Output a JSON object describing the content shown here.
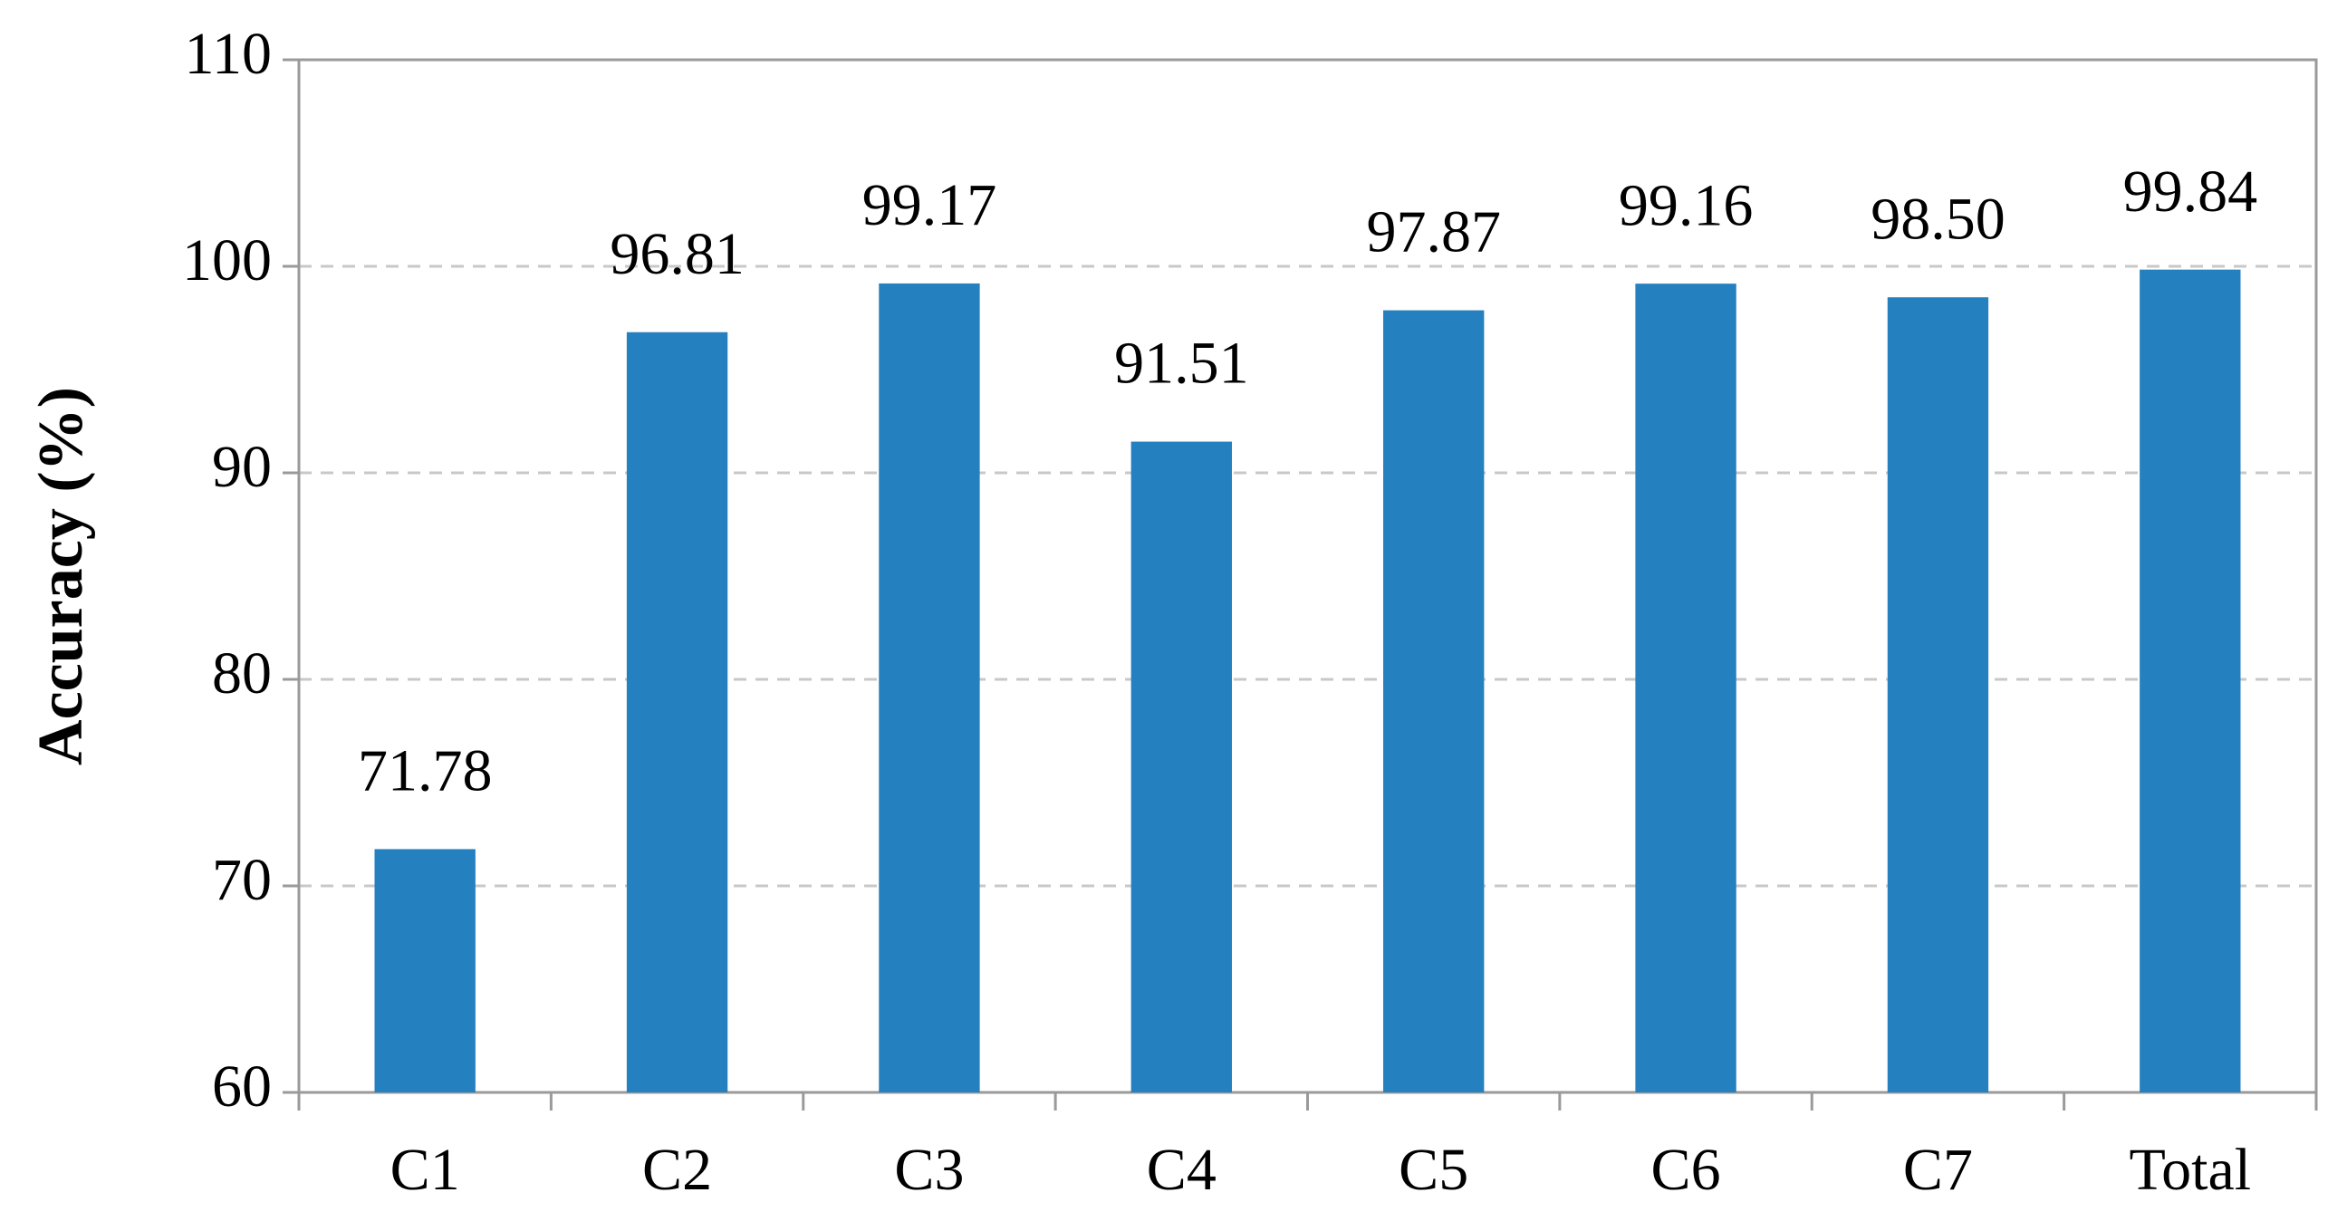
{
  "chart_data": {
    "type": "bar",
    "y_label": "Accuracy (%)",
    "categories": [
      "C1",
      "C2",
      "C3",
      "C4",
      "C5",
      "C6",
      "C7",
      "Total"
    ],
    "values": [
      71.78,
      96.81,
      99.17,
      91.51,
      97.87,
      99.16,
      98.5,
      99.84
    ],
    "value_labels": [
      "71.78",
      "96.81",
      "99.17",
      "91.51",
      "97.87",
      "99.16",
      "98.50",
      "99.84"
    ],
    "color": "#2580bf",
    "ylim": [
      60,
      110
    ],
    "yticks": [
      60,
      70,
      80,
      90,
      100,
      110
    ],
    "grid": true
  }
}
